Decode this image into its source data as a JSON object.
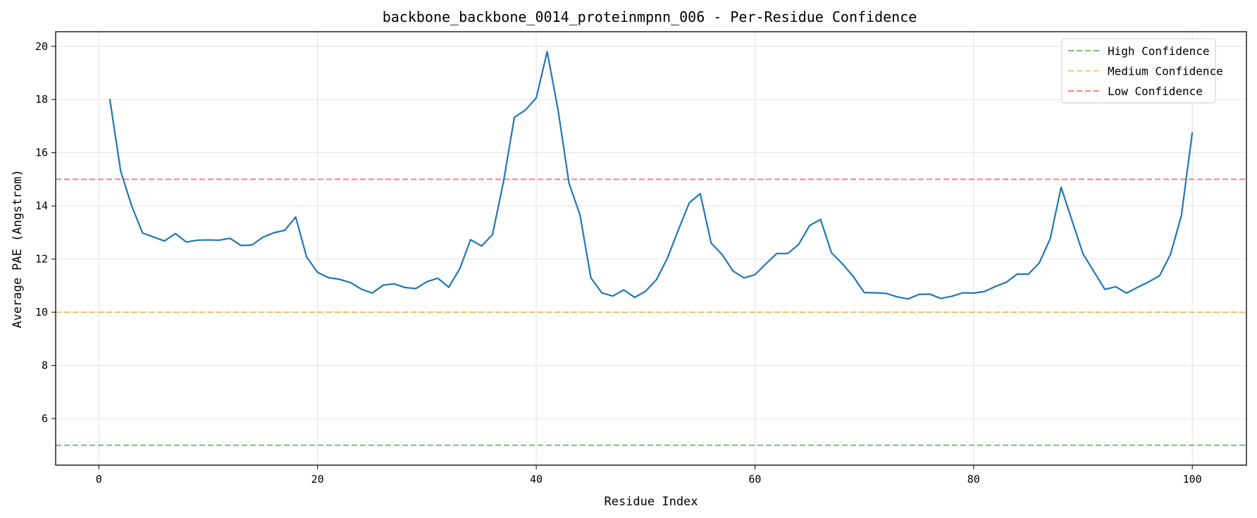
{
  "chart_data": {
    "type": "line",
    "title": "backbone_backbone_0014_proteinmpnn_006 - Per-Residue Confidence",
    "xlabel": "Residue Index",
    "ylabel": "Average PAE (Angstrom)",
    "xlim": [
      -3.95,
      104.95
    ],
    "ylim": [
      4.25,
      20.55
    ],
    "xticks": [
      0,
      20,
      40,
      60,
      80,
      100
    ],
    "yticks": [
      6,
      8,
      10,
      12,
      14,
      16,
      18,
      20
    ],
    "grid": true,
    "legend_position": "top-right",
    "series": [
      {
        "color": "#1f77b4",
        "x": [
          1,
          2,
          3,
          4,
          5,
          6,
          7,
          8,
          9,
          10,
          11,
          12,
          13,
          14,
          15,
          16,
          17,
          18,
          19,
          20,
          21,
          22,
          23,
          24,
          25,
          26,
          27,
          28,
          29,
          30,
          31,
          32,
          33,
          34,
          35,
          36,
          37,
          38,
          39,
          40,
          41,
          42,
          43,
          44,
          45,
          46,
          47,
          48,
          49,
          50,
          51,
          52,
          53,
          54,
          55,
          56,
          57,
          58,
          59,
          60,
          61,
          62,
          63,
          64,
          65,
          66,
          67,
          68,
          69,
          70,
          71,
          72,
          73,
          74,
          75,
          76,
          77,
          78,
          79,
          80,
          81,
          82,
          83,
          84,
          85,
          86,
          87,
          88,
          89,
          90,
          91,
          92,
          93,
          94,
          95,
          96,
          97,
          98,
          99,
          100
        ],
        "values": [
          18.02,
          15.3,
          14.0,
          12.98,
          12.83,
          12.68,
          12.96,
          12.64,
          12.71,
          12.72,
          12.71,
          12.78,
          12.51,
          12.53,
          12.82,
          12.99,
          13.08,
          13.58,
          12.08,
          11.5,
          11.3,
          11.24,
          11.12,
          10.87,
          10.72,
          11.02,
          11.07,
          10.93,
          10.89,
          11.15,
          11.28,
          10.94,
          11.63,
          12.73,
          12.49,
          12.92,
          14.9,
          17.33,
          17.6,
          18.06,
          19.8,
          17.6,
          14.85,
          13.66,
          11.29,
          10.73,
          10.61,
          10.84,
          10.56,
          10.79,
          11.23,
          12.04,
          13.1,
          14.12,
          14.46,
          12.6,
          12.17,
          11.55,
          11.29,
          11.41,
          11.82,
          12.21,
          12.21,
          12.55,
          13.26,
          13.49,
          12.24,
          11.82,
          11.34,
          10.74,
          10.73,
          10.71,
          10.58,
          10.5,
          10.67,
          10.68,
          10.52,
          10.6,
          10.73,
          10.72,
          10.78,
          10.97,
          11.13,
          11.44,
          11.43,
          11.85,
          12.76,
          14.7,
          13.45,
          12.2,
          11.53,
          10.86,
          10.96,
          10.72,
          10.94,
          11.14,
          11.37,
          12.17,
          13.63,
          16.77
        ]
      }
    ],
    "reference_lines": [
      {
        "name": "High Confidence",
        "value": 5,
        "color": "#2ca02c"
      },
      {
        "name": "Medium Confidence",
        "value": 10,
        "color": "#f5a623"
      },
      {
        "name": "Low Confidence",
        "value": 15,
        "color": "#f0403a"
      }
    ]
  }
}
